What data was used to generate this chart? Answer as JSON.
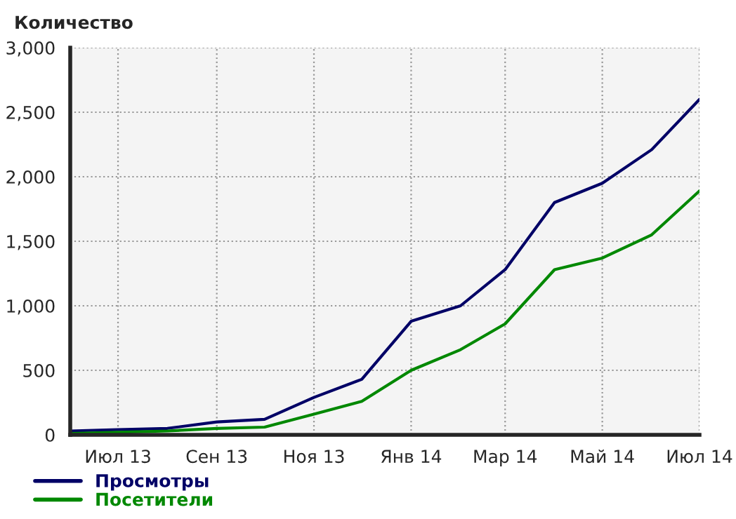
{
  "chart_data": {
    "type": "line",
    "ylabel": "Количество",
    "x": [
      "2013-06",
      "2013-07",
      "2013-08",
      "2013-09",
      "2013-10",
      "2013-11",
      "2013-12",
      "2014-01",
      "2014-02",
      "2014-03",
      "2014-04",
      "2014-05",
      "2014-06",
      "2014-07"
    ],
    "series": [
      {
        "name": "Просмотры",
        "color": "#000066",
        "values": [
          30,
          40,
          50,
          100,
          120,
          290,
          430,
          880,
          1000,
          1280,
          1800,
          1950,
          2210,
          2600
        ]
      },
      {
        "name": "Посетители",
        "color": "#008800",
        "values": [
          10,
          20,
          30,
          50,
          60,
          160,
          260,
          500,
          660,
          860,
          1280,
          1370,
          1550,
          1890
        ]
      }
    ],
    "xlim": [
      "2013-06",
      "2014-07"
    ],
    "xticks": [
      {
        "value": "2013-07",
        "label": "Июл 13"
      },
      {
        "value": "2013-09",
        "label": "Сен 13"
      },
      {
        "value": "2013-11",
        "label": "Ноя 13"
      },
      {
        "value": "2014-01",
        "label": "Янв 14"
      },
      {
        "value": "2014-03",
        "label": "Мар 14"
      },
      {
        "value": "2014-05",
        "label": "Май 14"
      },
      {
        "value": "2014-07",
        "label": "Июл 14"
      }
    ],
    "ylim": [
      0,
      3000
    ],
    "yticks": [
      0,
      500,
      {
        "value": 1000,
        "label": "1,000"
      },
      {
        "value": 1500,
        "label": "1,500"
      },
      {
        "value": 2000,
        "label": "2,000"
      },
      {
        "value": 2500,
        "label": "2,500"
      },
      {
        "value": 3000,
        "label": "3,000"
      }
    ],
    "grid": true,
    "legend": "bottom left",
    "marker": "none",
    "line_style": "solid"
  }
}
